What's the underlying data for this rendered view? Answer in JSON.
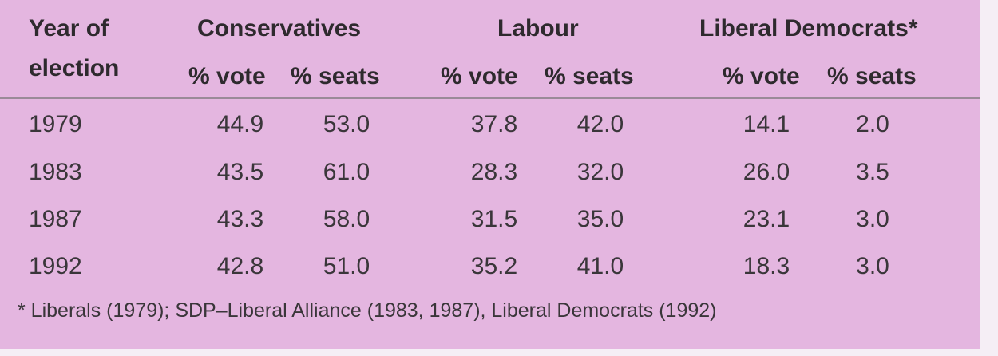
{
  "header": {
    "year_line1": "Year of",
    "year_line2": "election",
    "parties": [
      "Conservatives",
      "Labour",
      "Liberal Democrats*"
    ],
    "sub_vote": "% vote",
    "sub_seats": "% seats"
  },
  "rows": [
    {
      "year": "1979",
      "cells": [
        "44.9",
        "53.0",
        "37.8",
        "42.0",
        "14.1",
        "2.0"
      ]
    },
    {
      "year": "1983",
      "cells": [
        "43.5",
        "61.0",
        "28.3",
        "32.0",
        "26.0",
        "3.5"
      ]
    },
    {
      "year": "1987",
      "cells": [
        "43.3",
        "58.0",
        "31.5",
        "35.0",
        "23.1",
        "3.0"
      ]
    },
    {
      "year": "1992",
      "cells": [
        "42.8",
        "51.0",
        "35.2",
        "41.0",
        "18.3",
        "3.0"
      ]
    }
  ],
  "footnote": "* Liberals (1979); SDP–Liberal Alliance (1983, 1987), Liberal Democrats (1992)"
}
